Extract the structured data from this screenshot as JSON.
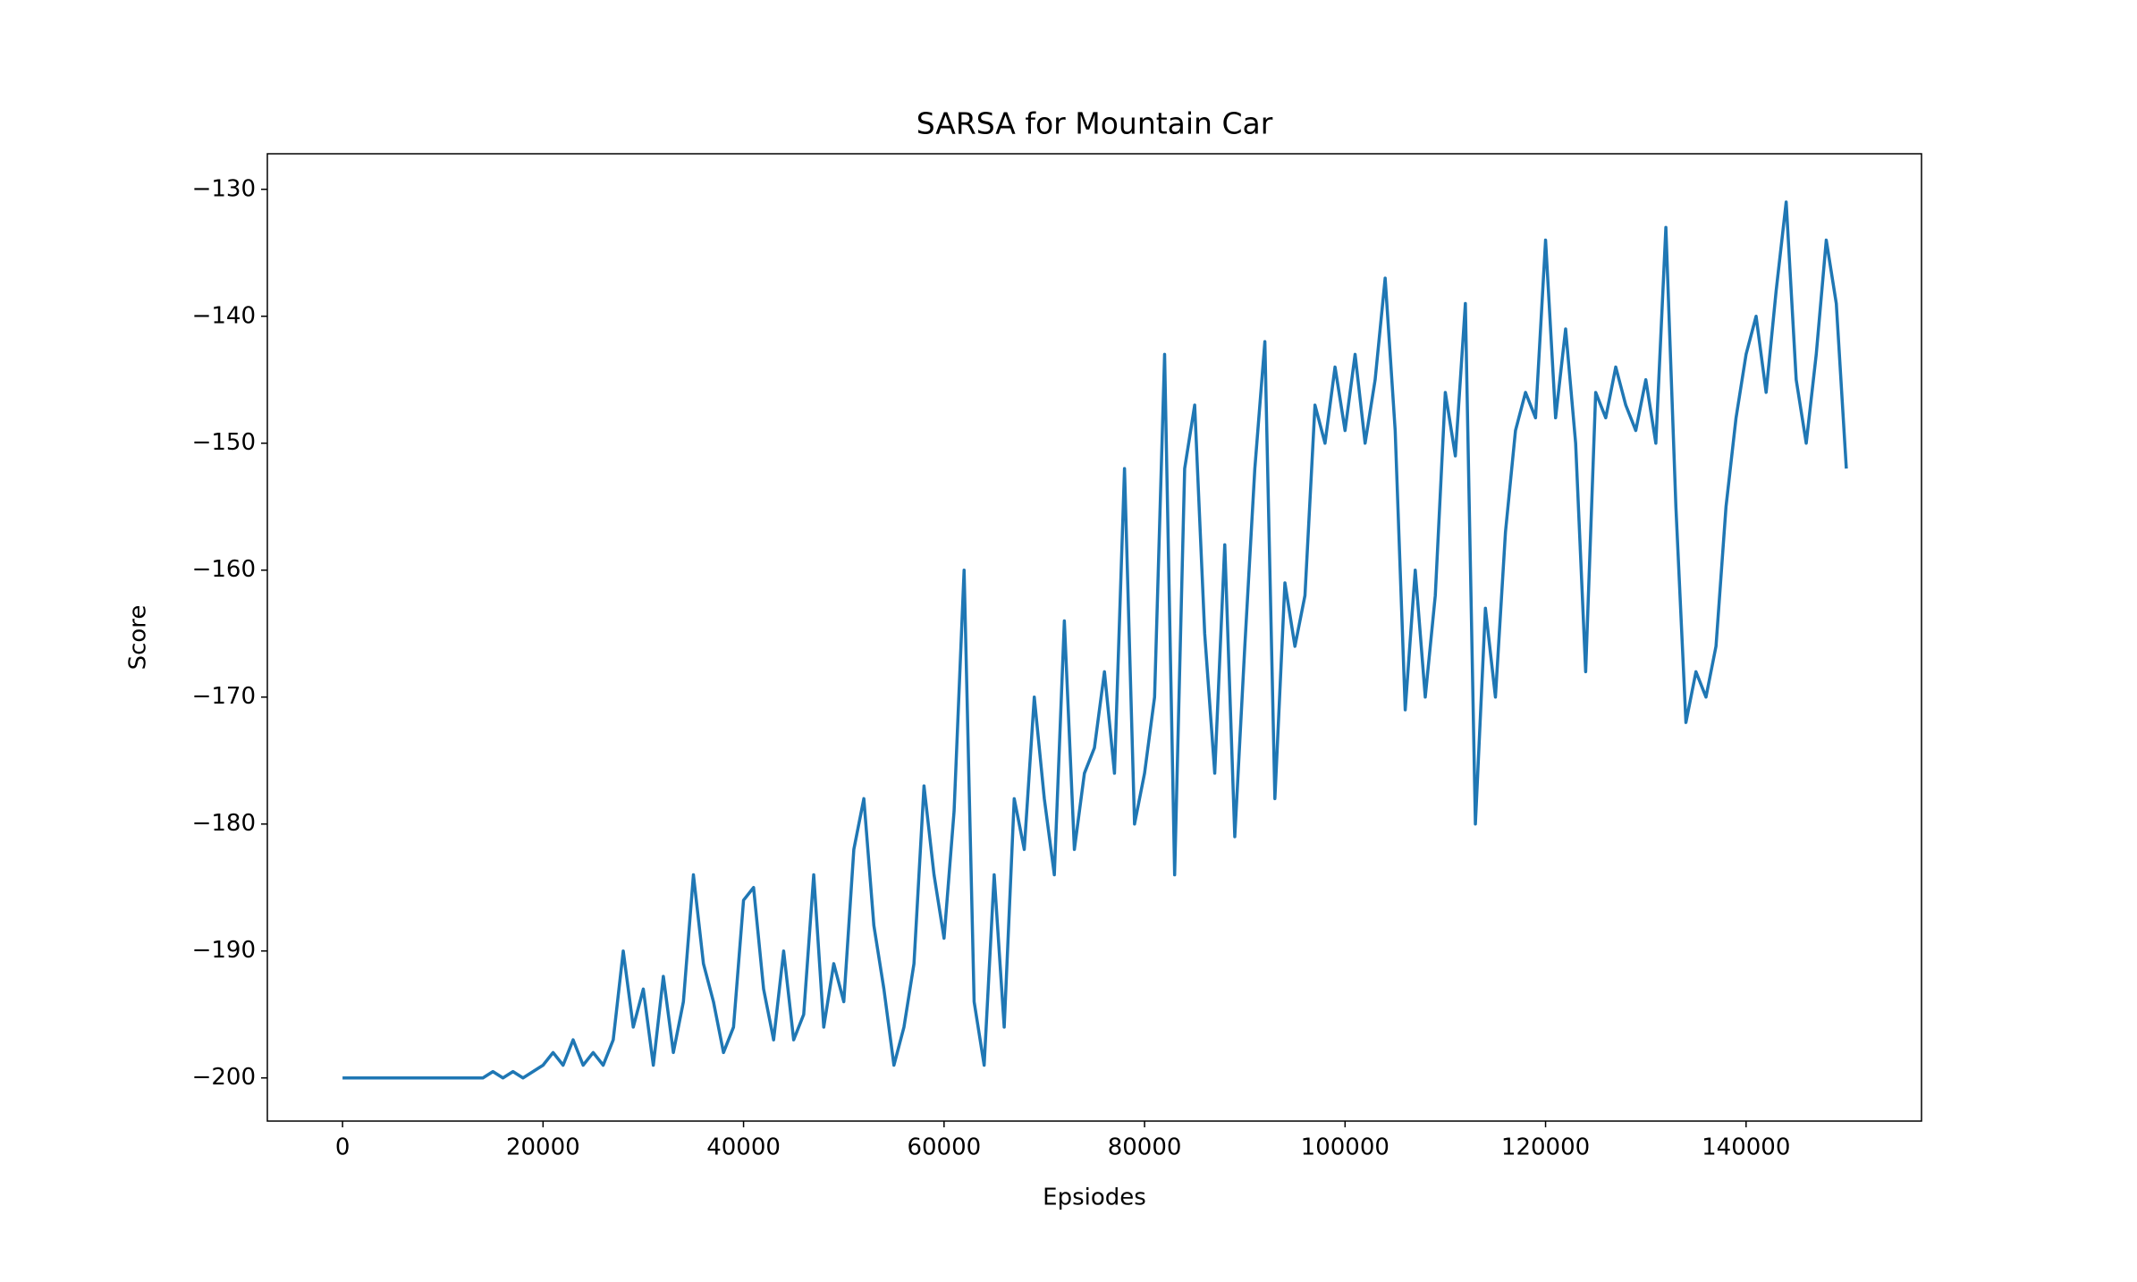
{
  "chart_data": {
    "type": "line",
    "title": "SARSA for Mountain Car",
    "x_label": "Epsiodes",
    "y_label": "Score",
    "x": [
      0,
      1000,
      2000,
      3000,
      4000,
      5000,
      6000,
      7000,
      8000,
      9000,
      10000,
      11000,
      12000,
      13000,
      14000,
      15000,
      16000,
      17000,
      18000,
      19000,
      20000,
      21000,
      22000,
      23000,
      24000,
      25000,
      26000,
      27000,
      28000,
      29000,
      30000,
      31000,
      32000,
      33000,
      34000,
      35000,
      36000,
      37000,
      38000,
      39000,
      40000,
      41000,
      42000,
      43000,
      44000,
      45000,
      46000,
      47000,
      48000,
      49000,
      50000,
      51000,
      52000,
      53000,
      54000,
      55000,
      56000,
      57000,
      58000,
      59000,
      60000,
      61000,
      62000,
      63000,
      64000,
      65000,
      66000,
      67000,
      68000,
      69000,
      70000,
      71000,
      72000,
      73000,
      74000,
      75000,
      76000,
      77000,
      78000,
      79000,
      80000,
      81000,
      82000,
      83000,
      84000,
      85000,
      86000,
      87000,
      88000,
      89000,
      90000,
      91000,
      92000,
      93000,
      94000,
      95000,
      96000,
      97000,
      98000,
      99000,
      100000,
      101000,
      102000,
      103000,
      104000,
      105000,
      106000,
      107000,
      108000,
      109000,
      110000,
      111000,
      112000,
      113000,
      114000,
      115000,
      116000,
      117000,
      118000,
      119000,
      120000,
      121000,
      122000,
      123000,
      124000,
      125000,
      126000,
      127000,
      128000,
      129000,
      130000,
      131000,
      132000,
      133000,
      134000,
      135000,
      136000,
      137000,
      138000,
      139000,
      140000,
      141000,
      142000,
      143000,
      144000,
      145000,
      146000,
      147000,
      148000,
      149000,
      150000
    ],
    "series": [
      {
        "name": "Score",
        "color": "#1f77b4",
        "values": [
          -200,
          -200,
          -200,
          -200,
          -200,
          -200,
          -200,
          -200,
          -200,
          -200,
          -200,
          -200,
          -200,
          -200,
          -200,
          -199.5,
          -200,
          -199.5,
          -200,
          -199.5,
          -199,
          -198,
          -199,
          -197,
          -199,
          -198,
          -199,
          -197,
          -190,
          -196,
          -193,
          -199,
          -192,
          -198,
          -194,
          -184,
          -191,
          -194,
          -198,
          -196,
          -186,
          -185,
          -193,
          -197,
          -190,
          -197,
          -195,
          -184,
          -196,
          -191,
          -194,
          -182,
          -178,
          -188,
          -193,
          -199,
          -196,
          -191,
          -177,
          -184,
          -189,
          -179,
          -160,
          -194,
          -199,
          -184,
          -196,
          -178,
          -182,
          -170,
          -178,
          -184,
          -164,
          -182,
          -176,
          -174,
          -168,
          -176,
          -152,
          -180,
          -176,
          -170,
          -143,
          -184,
          -152,
          -147,
          -165,
          -176,
          -158,
          -181,
          -166,
          -152,
          -142,
          -178,
          -161,
          -166,
          -162,
          -147,
          -150,
          -144,
          -149,
          -143,
          -150,
          -145,
          -137,
          -149,
          -171,
          -160,
          -170,
          -162,
          -146,
          -151,
          -139,
          -180,
          -163,
          -170,
          -157,
          -149,
          -146,
          -148,
          -134,
          -148,
          -141,
          -150,
          -168,
          -146,
          -148,
          -144,
          -147,
          -149,
          -145,
          -150,
          -133,
          -155,
          -172,
          -168,
          -170,
          -166,
          -155,
          -148,
          -143,
          -140,
          -146,
          -138,
          -131,
          -145,
          -150,
          -143,
          -134,
          -139,
          -152
        ]
      }
    ],
    "xlim": [
      -7500,
      157500
    ],
    "ylim": [
      -203.4,
      -127.2
    ],
    "xticks": [
      0,
      20000,
      40000,
      60000,
      80000,
      100000,
      120000,
      140000
    ],
    "yticks": [
      {
        "value": -200,
        "label": "−200"
      },
      {
        "value": -190,
        "label": "−190"
      },
      {
        "value": -180,
        "label": "−180"
      },
      {
        "value": -170,
        "label": "−170"
      },
      {
        "value": -160,
        "label": "−160"
      },
      {
        "value": -150,
        "label": "−150"
      },
      {
        "value": -140,
        "label": "−140"
      },
      {
        "value": -130,
        "label": "−130"
      }
    ],
    "grid": false
  }
}
